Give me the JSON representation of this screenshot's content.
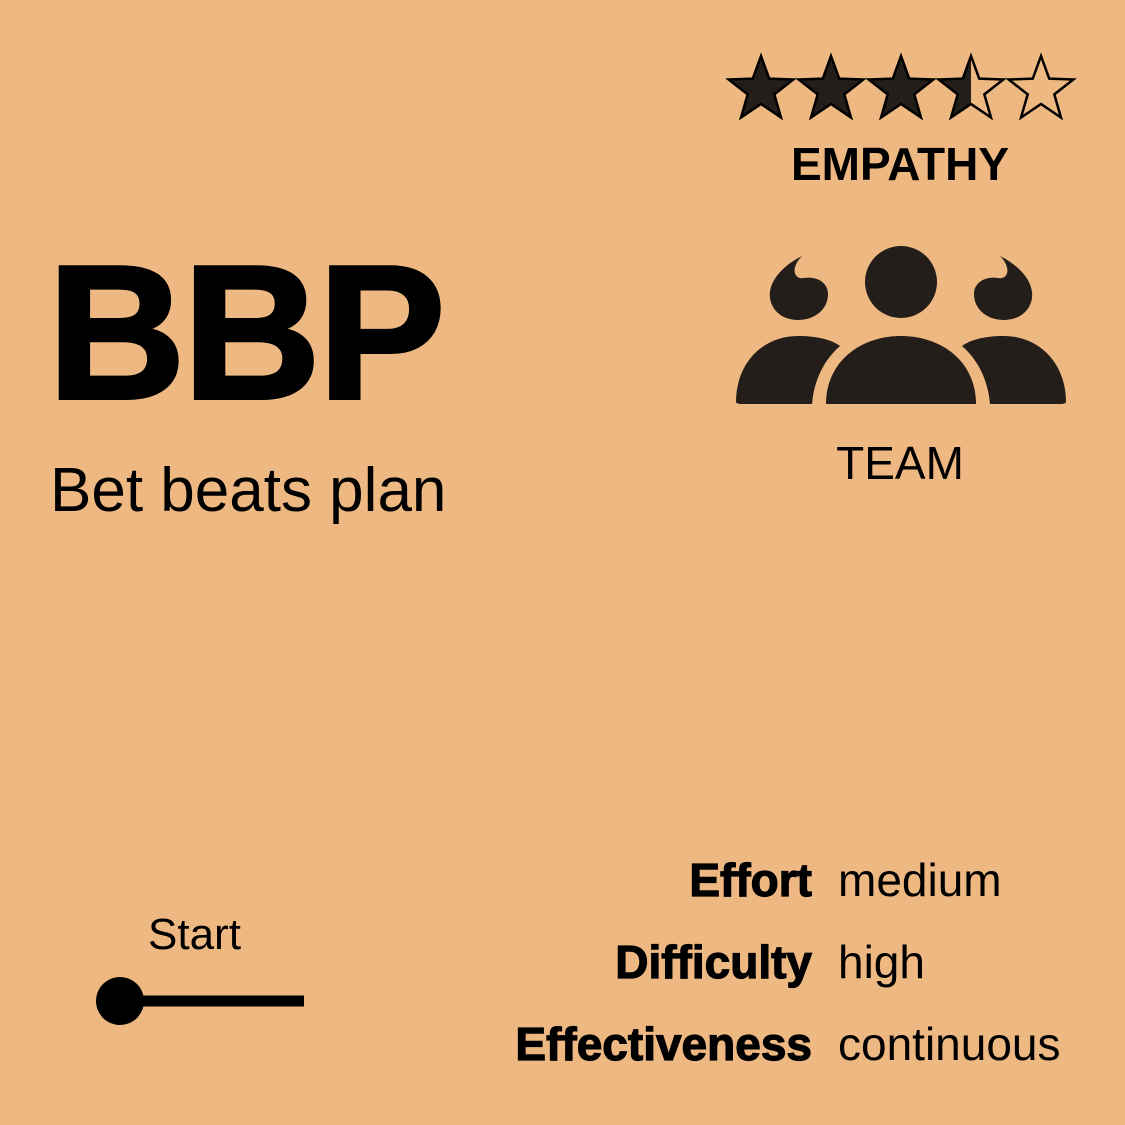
{
  "card": {
    "abbreviation": "BBP",
    "title": "Bet beats plan",
    "category": "EMPATHY",
    "rating": {
      "value": 3.5,
      "max": 5
    },
    "audience": {
      "icon": "team-icon",
      "label": "TEAM"
    },
    "stage": {
      "label": "Start",
      "icon": "start-stage-icon"
    },
    "metrics": [
      {
        "name": "Effort",
        "value": "medium"
      },
      {
        "name": "Difficulty",
        "value": "high"
      },
      {
        "name": "Effectiveness",
        "value": "continuous"
      }
    ]
  },
  "colors": {
    "background": "#EEB882",
    "ink": "#000000",
    "icon": "#231E1A"
  }
}
